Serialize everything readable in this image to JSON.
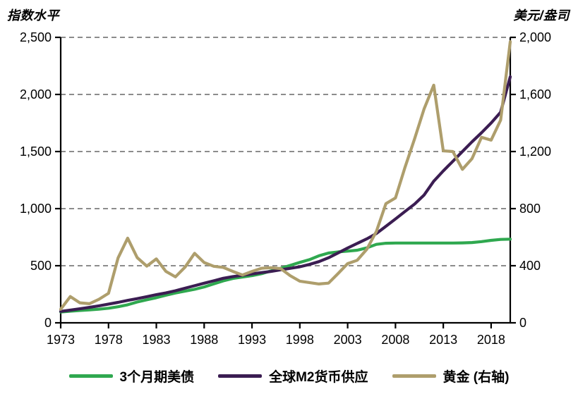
{
  "header": {
    "left_axis_title": "指数水平",
    "right_axis_title": "美元/盎司"
  },
  "colors": {
    "treasury_green": "#2FA84F",
    "m2_purple": "#3B1D52",
    "gold_tan": "#AE9E6C",
    "gridline_gray": "#8C8C8C",
    "axis_black": "#000000",
    "background": "#FFFFFF"
  },
  "legend": {
    "items": [
      {
        "label": "3个月期美债",
        "color": "#2FA84F"
      },
      {
        "label": "全球M2货币供应",
        "color": "#3B1D52"
      },
      {
        "label": "黄金 (右轴)",
        "color": "#AE9E6C"
      }
    ]
  },
  "chart_data": {
    "type": "line",
    "title": "",
    "grid": "horizontal-dashed",
    "legend_position": "bottom",
    "x_axis": {
      "range": [
        1973,
        2020
      ],
      "ticks": [
        1973,
        1978,
        1983,
        1988,
        1993,
        1998,
        2003,
        2008,
        2013,
        2018
      ]
    },
    "left_axis": {
      "title": "指数水平",
      "range": [
        0,
        2500
      ],
      "ticks": [
        0,
        500,
        1000,
        1500,
        2000,
        2500
      ]
    },
    "right_axis": {
      "title": "美元/盎司",
      "range": [
        0,
        2000
      ],
      "ticks": [
        0,
        400,
        800,
        1200,
        1600,
        2000
      ]
    },
    "x": [
      1973,
      1974,
      1975,
      1976,
      1977,
      1978,
      1979,
      1980,
      1981,
      1982,
      1983,
      1984,
      1985,
      1986,
      1987,
      1988,
      1989,
      1990,
      1991,
      1992,
      1993,
      1994,
      1995,
      1996,
      1997,
      1998,
      1999,
      2000,
      2001,
      2002,
      2003,
      2004,
      2005,
      2006,
      2007,
      2008,
      2009,
      2010,
      2011,
      2012,
      2013,
      2014,
      2015,
      2016,
      2017,
      2018,
      2019,
      2020
    ],
    "series": [
      {
        "name": "3个月期美债",
        "axis": "left",
        "color": "#2FA84F",
        "values": [
          95,
          102,
          108,
          113,
          119,
          128,
          141,
          158,
          182,
          202,
          220,
          242,
          261,
          277,
          293,
          314,
          341,
          367,
          388,
          401,
          413,
          430,
          455,
          478,
          503,
          529,
          553,
          587,
          611,
          621,
          628,
          636,
          656,
          687,
          697,
          699,
          699,
          699,
          699,
          699,
          699,
          699,
          700,
          703,
          711,
          722,
          730,
          733
        ]
      },
      {
        "name": "全球M2货币供应",
        "axis": "left",
        "color": "#3B1D52",
        "values": [
          100,
          111,
          123,
          135,
          149,
          164,
          179,
          196,
          212,
          229,
          246,
          262,
          281,
          303,
          325,
          347,
          368,
          390,
          405,
          416,
          428,
          440,
          450,
          464,
          477,
          491,
          511,
          536,
          570,
          612,
          655,
          695,
          735,
          782,
          845,
          910,
          975,
          1040,
          1120,
          1240,
          1330,
          1415,
          1500,
          1585,
          1665,
          1750,
          1845,
          2155
        ]
      },
      {
        "name": "黄金 (右轴)",
        "axis": "right",
        "color": "#AE9E6C",
        "values": [
          95,
          184,
          140,
          134,
          165,
          207,
          455,
          593,
          457,
          397,
          448,
          360,
          322,
          390,
          487,
          422,
          396,
          388,
          360,
          335,
          360,
          382,
          386,
          380,
          330,
          292,
          282,
          272,
          278,
          345,
          415,
          438,
          515,
          640,
          835,
          875,
          1090,
          1290,
          1500,
          1665,
          1205,
          1200,
          1075,
          1150,
          1300,
          1280,
          1420,
          1970
        ]
      }
    ]
  }
}
